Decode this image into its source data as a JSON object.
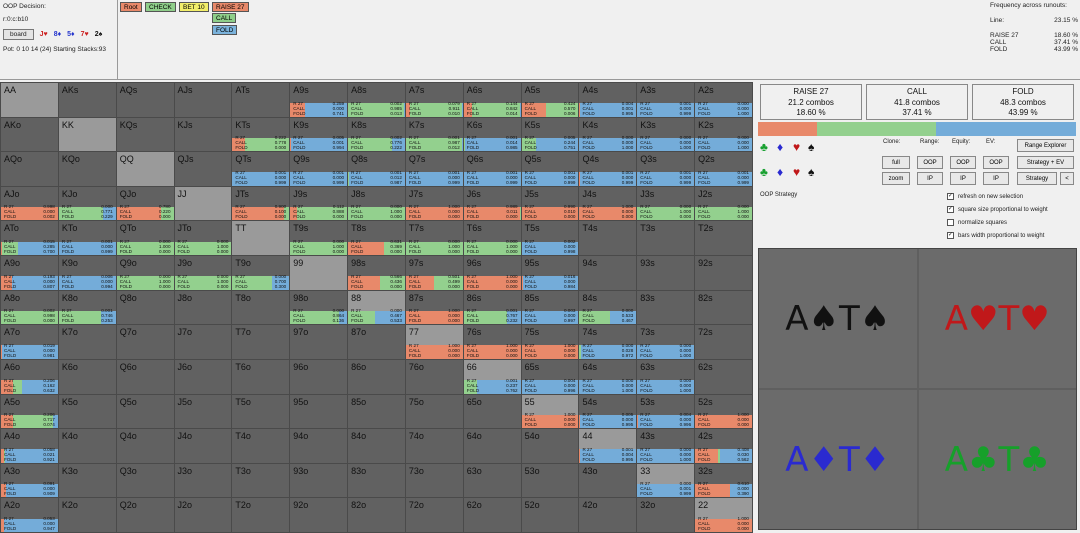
{
  "header": {
    "decision": "OOP Decision:",
    "line": "r:0:c:b10",
    "board_button": "board",
    "board_cards": [
      {
        "t": "J♥",
        "c": "#cc2222"
      },
      {
        "t": "8♦",
        "c": "#2233cc"
      },
      {
        "t": "5♦",
        "c": "#2233cc"
      },
      {
        "t": "7♥",
        "c": "#cc2222"
      },
      {
        "t": "2♠",
        "c": "#111111"
      }
    ],
    "pot_info": "Pot: 0 10 14 (24) Starting Stacks:93"
  },
  "tree": {
    "nodes": [
      {
        "label": "Root",
        "bg": "#e8896a"
      },
      {
        "label": "CHECK",
        "bg": "#8fce8a"
      },
      {
        "label": "BET 10",
        "bg": "#f2ee6a"
      },
      {
        "label": "RAISE 27",
        "bg": "#e8896a"
      },
      {
        "label": "CALL",
        "bg": "#8fce8a"
      },
      {
        "label": "FOLD",
        "bg": "#7bb3dc"
      }
    ]
  },
  "frequency": {
    "title": "Frequency across runouts:",
    "line_label": "Line:",
    "line_value": "23.15 %",
    "rows": [
      {
        "a": "RAISE 27",
        "v": "18.60 %"
      },
      {
        "a": "CALL",
        "v": "37.41 %"
      },
      {
        "a": "FOLD",
        "v": "43.99 %"
      }
    ]
  },
  "actions": [
    {
      "name": "RAISE 27",
      "combos": "21.2 combos",
      "pct": "18.60 %",
      "bg": "#e8896a"
    },
    {
      "name": "CALL",
      "combos": "41.8 combos",
      "pct": "37.41 %",
      "bg": "#93d08e"
    },
    {
      "name": "FOLD",
      "combos": "48.3 combos",
      "pct": "43.99 %",
      "bg": "#74acd9"
    }
  ],
  "controls": {
    "clone": "Clone:",
    "range": "Range:",
    "equity": "Equity:",
    "ev": "EV:",
    "full": "full",
    "zoom": "zoom",
    "oop1": "OOP",
    "ip1": "IP",
    "oop2": "OOP",
    "ip2": "IP",
    "oop3": "OOP",
    "ip3": "IP",
    "range_explorer": "Range Explorer",
    "strategy_ev": "Strategy + EV",
    "strategy": "Strategy",
    "back": "<",
    "oop_strategy": "OOP Strategy"
  },
  "checkboxes": [
    {
      "label": "refresh on new selection",
      "checked": true
    },
    {
      "label": "square size proportional to weight",
      "checked": true
    },
    {
      "label": "normalize squares",
      "checked": false
    },
    {
      "label": "bars width proportional to weight",
      "checked": true
    }
  ],
  "board_boxes": [
    {
      "text": "A♠T♠",
      "color": "#111111"
    },
    {
      "text": "A♥T♥",
      "color": "#c0181a"
    },
    {
      "text": "A♦T♦",
      "color": "#2a2ad0"
    },
    {
      "text": "A♣T♣",
      "color": "#16a02a"
    }
  ],
  "colors": {
    "raise": "#e8896a",
    "call": "#93d08e",
    "fold": "#74acd9"
  },
  "grid": [
    [
      "AA",
      "AKs",
      "AQs",
      "AJs",
      "ATs",
      "A9s",
      "A8s",
      "A7s",
      "A6s",
      "A5s",
      "A4s",
      "A3s",
      "A2s"
    ],
    [
      "AKo",
      "KK",
      "KQs",
      "KJs",
      "KTs",
      "K9s",
      "K8s",
      "K7s",
      "K6s",
      "K5s",
      "K4s",
      "K3s",
      "K2s"
    ],
    [
      "AQo",
      "KQo",
      "QQ",
      "QJs",
      "QTs",
      "Q9s",
      "Q8s",
      "Q7s",
      "Q6s",
      "Q5s",
      "Q4s",
      "Q3s",
      "Q2s"
    ],
    [
      "AJo",
      "KJo",
      "QJo",
      "JJ",
      "JTs",
      "J9s",
      "J8s",
      "J7s",
      "J6s",
      "J5s",
      "J4s",
      "J3s",
      "J2s"
    ],
    [
      "ATo",
      "KTo",
      "QTo",
      "JTo",
      "TT",
      "T9s",
      "T8s",
      "T7s",
      "T6s",
      "T5s",
      "T4s",
      "T3s",
      "T2s"
    ],
    [
      "A9o",
      "K9o",
      "Q9o",
      "J9o",
      "T9o",
      "99",
      "98s",
      "97s",
      "96s",
      "95s",
      "94s",
      "93s",
      "92s"
    ],
    [
      "A8o",
      "K8o",
      "Q8o",
      "J8o",
      "T8o",
      "98o",
      "88",
      "87s",
      "86s",
      "85s",
      "84s",
      "83s",
      "82s"
    ],
    [
      "A7o",
      "K7o",
      "Q7o",
      "J7o",
      "T7o",
      "97o",
      "87o",
      "77",
      "76s",
      "75s",
      "74s",
      "73s",
      "72s"
    ],
    [
      "A6o",
      "K6o",
      "Q6o",
      "J6o",
      "T6o",
      "96o",
      "86o",
      "76o",
      "66",
      "65s",
      "64s",
      "63s",
      "62s"
    ],
    [
      "A5o",
      "K5o",
      "Q5o",
      "J5o",
      "T5o",
      "95o",
      "85o",
      "75o",
      "65o",
      "55",
      "54s",
      "53s",
      "52s"
    ],
    [
      "A4o",
      "K4o",
      "Q4o",
      "J4o",
      "T4o",
      "94o",
      "84o",
      "74o",
      "64o",
      "54o",
      "44",
      "43s",
      "42s"
    ],
    [
      "A3o",
      "K3o",
      "Q3o",
      "J3o",
      "T3o",
      "93o",
      "83o",
      "73o",
      "63o",
      "53o",
      "43o",
      "33",
      "32s"
    ],
    [
      "A2o",
      "K2o",
      "Q2o",
      "J2o",
      "T2o",
      "92o",
      "82o",
      "72o",
      "62o",
      "52o",
      "42o",
      "32o",
      "22"
    ]
  ],
  "hand_stats": {
    "A9s": [
      0.259,
      0.0,
      0.741
    ],
    "A8s": [
      0.002,
      0.985,
      0.013
    ],
    "A7s": [
      0.079,
      0.911,
      0.01
    ],
    "A6s": [
      0.144,
      0.842,
      0.014
    ],
    "A5s": [
      0.424,
      0.57,
      0.006
    ],
    "A4s": [
      0.004,
      0.001,
      0.995
    ],
    "A3s": [
      0.001,
      0.0,
      0.999
    ],
    "A2s": [
      0.0,
      0.0,
      1.0
    ],
    "KTs": [
      0.222,
      0.778,
      0.0
    ],
    "K9s": [
      0.005,
      0.001,
      0.994
    ],
    "K8s": [
      0.002,
      0.776,
      0.222
    ],
    "K7s": [
      0.001,
      0.987,
      0.012
    ],
    "K6s": [
      0.001,
      0.014,
      0.985
    ],
    "K5s": [
      0.005,
      0.244,
      0.751
    ],
    "K4s": [
      0.0,
      0.0,
      1.0
    ],
    "K3s": [
      0.0,
      0.0,
      1.0
    ],
    "K2s": [
      0.0,
      0.0,
      1.0
    ],
    "QTs": [
      0.001,
      0.0,
      0.999
    ],
    "Q9s": [
      0.001,
      0.0,
      0.999
    ],
    "Q8s": [
      0.001,
      0.012,
      0.987
    ],
    "Q7s": [
      0.001,
      0.0,
      0.999
    ],
    "Q6s": [
      0.001,
      0.0,
      0.999
    ],
    "Q5s": [
      0.001,
      0.0,
      0.999
    ],
    "Q4s": [
      0.001,
      0.0,
      0.999
    ],
    "Q3s": [
      0.001,
      0.0,
      0.999
    ],
    "Q2s": [
      0.001,
      0.0,
      0.999
    ],
    "AJo": [
      0.998,
      0.0,
      0.002
    ],
    "KJo": [
      0.0,
      0.771,
      0.229
    ],
    "QJo": [
      0.78,
      0.22,
      0.0
    ],
    "JTs": [
      0.9,
      0.1,
      0.0
    ],
    "J9s": [
      0.112,
      0.888,
      0.0
    ],
    "J8s": [
      0.0,
      1.0,
      0.0
    ],
    "J7s": [
      1.0,
      0.0,
      0.0
    ],
    "J6s": [
      0.989,
      0.011,
      0.0
    ],
    "J5s": [
      0.99,
      0.01,
      0.0
    ],
    "J4s": [
      1.0,
      0.0,
      0.0
    ],
    "J3s": [
      0.0,
      1.0,
      0.0
    ],
    "J2s": [
      0.0,
      1.0,
      0.0
    ],
    "ATo": [
      0.015,
      0.285,
      0.7
    ],
    "KTo": [
      0.001,
      0.0,
      0.999
    ],
    "QTo": [
      0.0,
      1.0,
      0.0
    ],
    "JTo": [
      0.0,
      1.0,
      0.0
    ],
    "T9s": [
      0.0,
      1.0,
      0.0
    ],
    "T8s": [
      0.631,
      0.369,
      0.0
    ],
    "T7s": [
      0.0,
      1.0,
      0.0
    ],
    "T6s": [
      0.0,
      1.0,
      0.0
    ],
    "T5s": [
      0.002,
      0.0,
      0.998
    ],
    "A9o": [
      0.193,
      0.0,
      0.807
    ],
    "K9o": [
      0.006,
      0.0,
      0.994
    ],
    "Q9o": [
      0.0,
      1.0,
      0.0
    ],
    "J9o": [
      0.0,
      1.0,
      0.0
    ],
    "T9o": [
      0.0,
      0.7,
      0.3
    ],
    "98s": [
      0.566,
      0.436,
      0.0
    ],
    "97s": [
      0.501,
      0.499,
      0.0
    ],
    "96s": [
      1.0,
      0.0,
      0.0
    ],
    "95s": [
      0.016,
      0.0,
      0.984
    ],
    "A8o": [
      0.002,
      0.998,
      0.0
    ],
    "K8o": [
      0.001,
      0.746,
      0.253
    ],
    "98o": [
      0.0,
      0.864,
      0.136
    ],
    "88": [
      0.0,
      0.467,
      0.533
    ],
    "87s": [
      1.0,
      0.0,
      0.0
    ],
    "86s": [
      0.001,
      0.767,
      0.232
    ],
    "85s": [
      0.003,
      0.0,
      0.997
    ],
    "84s": [
      0.0,
      0.533,
      0.467
    ],
    "A7o": [
      0.019,
      0.0,
      0.981
    ],
    "77": [
      1.0,
      0.0,
      0.0
    ],
    "76s": [
      1.0,
      0.0,
      0.0
    ],
    "75s": [
      1.0,
      0.0,
      0.0
    ],
    "74s": [
      0.0,
      0.028,
      0.972
    ],
    "73s": [
      0.0,
      0.0,
      1.0
    ],
    "A6o": [
      0.206,
      0.162,
      0.632
    ],
    "66": [
      0.001,
      0.237,
      0.762
    ],
    "65s": [
      0.004,
      0.0,
      0.996
    ],
    "64s": [
      0.0,
      0.0,
      1.0
    ],
    "63s": [
      0.0,
      0.0,
      1.0
    ],
    "A5o": [
      0.206,
      0.717,
      0.074
    ],
    "55": [
      1.0,
      0.0,
      0.0
    ],
    "54s": [
      0.005,
      0.0,
      0.995
    ],
    "53s": [
      0.004,
      0.0,
      0.996
    ],
    "52s": [
      1.0,
      0.0,
      0.0
    ],
    "A4o": [
      0.058,
      0.021,
      0.921
    ],
    "44": [
      0.001,
      0.004,
      0.995
    ],
    "43s": [
      0.0,
      0.0,
      1.0
    ],
    "42s": [
      0.408,
      0.03,
      0.562
    ],
    "A3o": [
      0.091,
      0.0,
      0.909
    ],
    "33": [
      0.0,
      0.001,
      0.999
    ],
    "32s": [
      0.61,
      0.0,
      0.39
    ],
    "A2o": [
      0.053,
      0.0,
      0.947
    ],
    "22": [
      1.0,
      0.0,
      0.0
    ]
  }
}
